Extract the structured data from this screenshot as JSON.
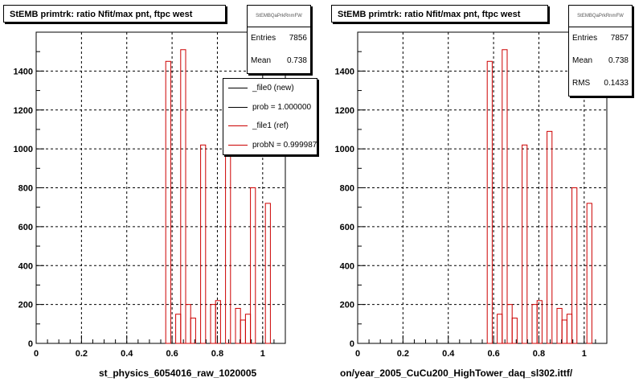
{
  "colors": {
    "new": "#000000",
    "ref": "#cc0000",
    "grid": "#000000",
    "frame": "#000000"
  },
  "pads": [
    {
      "title": "StEMB primtrk: ratio Nfit/max pnt, ftpc west",
      "stats": {
        "name": "StEMBQaPrkRnmFW",
        "rows": [
          {
            "key": "Entries",
            "value": "7856"
          },
          {
            "key": "Mean",
            "value": "0.738"
          }
        ]
      },
      "legend": {
        "entries": [
          {
            "text": "_file0 (new)",
            "color": "#000000"
          },
          {
            "text": "prob = 1.000000",
            "color": "#000000"
          },
          {
            "text": "_file1 (ref)",
            "color": "#cc0000"
          },
          {
            "text": "probN = 0.999987",
            "color": "#cc0000"
          }
        ]
      },
      "xaxis_title": "st_physics_6054016_raw_1020005"
    },
    {
      "title": "StEMB primtrk: ratio Nfit/max pnt, ftpc west",
      "stats": {
        "name": "StEMBQaPrkRnmFW",
        "rows": [
          {
            "key": "Entries",
            "value": "7857"
          },
          {
            "key": "Mean",
            "value": "0.738"
          },
          {
            "key": "RMS",
            "value": "0.1433"
          }
        ]
      },
      "xaxis_title": "on/year_2005_CuCu200_HighTower_daq_sl302.ittf/"
    }
  ],
  "chart_data": [
    {
      "type": "bar",
      "title": "StEMB primtrk: ratio Nfit/max pnt, ftpc west",
      "xlabel": "st_physics_6054016_raw_1020005",
      "ylabel": "",
      "xlim": [
        0,
        1.1
      ],
      "ylim": [
        0,
        1600
      ],
      "xticks": [
        0,
        0.2,
        0.4,
        0.6,
        0.8,
        1
      ],
      "yticks": [
        0,
        200,
        400,
        600,
        800,
        1000,
        1200,
        1400
      ],
      "grid": true,
      "legend_position": "top-right",
      "bin_width": 0.022,
      "series": [
        {
          "name": "_file1 (ref)",
          "values": [
            0,
            0,
            0,
            0,
            0,
            0,
            0,
            0,
            0,
            0,
            0,
            0,
            0,
            0,
            0,
            0,
            0,
            0,
            0,
            0,
            0,
            0,
            0,
            0,
            0,
            0,
            1450,
            0,
            150,
            1510,
            200,
            130,
            0,
            1020,
            0,
            200,
            220,
            0,
            1090,
            0,
            180,
            120,
            150,
            800,
            0,
            0,
            720,
            0,
            0,
            0
          ]
        }
      ]
    },
    {
      "type": "bar",
      "title": "StEMB primtrk: ratio Nfit/max pnt, ftpc west",
      "xlabel": "on/year_2005_CuCu200_HighTower_daq_sl302.ittf/",
      "ylabel": "",
      "xlim": [
        0,
        1.1
      ],
      "ylim": [
        0,
        1600
      ],
      "xticks": [
        0,
        0.2,
        0.4,
        0.6,
        0.8,
        1
      ],
      "yticks": [
        0,
        200,
        400,
        600,
        800,
        1000,
        1200,
        1400
      ],
      "grid": true,
      "legend_position": "none",
      "bin_width": 0.022,
      "series": [
        {
          "name": "",
          "values": [
            0,
            0,
            0,
            0,
            0,
            0,
            0,
            0,
            0,
            0,
            0,
            0,
            0,
            0,
            0,
            0,
            0,
            0,
            0,
            0,
            0,
            0,
            0,
            0,
            0,
            0,
            1450,
            0,
            150,
            1510,
            200,
            130,
            0,
            1020,
            0,
            200,
            220,
            0,
            1090,
            0,
            180,
            120,
            150,
            800,
            0,
            0,
            720,
            0,
            0,
            0
          ]
        }
      ]
    }
  ]
}
